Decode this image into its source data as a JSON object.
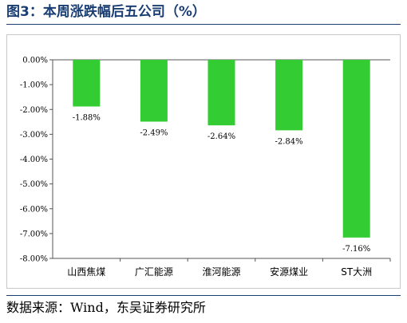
{
  "figure": {
    "title": "图3：本周涨跌幅后五公司（%）",
    "source": "数据来源：Wind，东吴证券研究所"
  },
  "chart_data": {
    "type": "bar",
    "categories": [
      "山西焦煤",
      "广汇能源",
      "淮河能源",
      "安源煤业",
      "ST大洲"
    ],
    "values": [
      -1.88,
      -2.49,
      -2.64,
      -2.84,
      -7.16
    ],
    "data_labels": [
      "-1.88%",
      "-2.49%",
      "-2.64%",
      "-2.84%",
      "-7.16%"
    ],
    "y_ticks": [
      0,
      -1,
      -2,
      -3,
      -4,
      -5,
      -6,
      -7,
      -8
    ],
    "y_tick_labels": [
      "0.00%",
      "-1.00%",
      "-2.00%",
      "-3.00%",
      "-4.00%",
      "-5.00%",
      "-6.00%",
      "-7.00%",
      "-8.00%"
    ],
    "ylim": [
      -8,
      0
    ],
    "grid": false,
    "legend": "none",
    "bar_color": "#33cc33"
  }
}
